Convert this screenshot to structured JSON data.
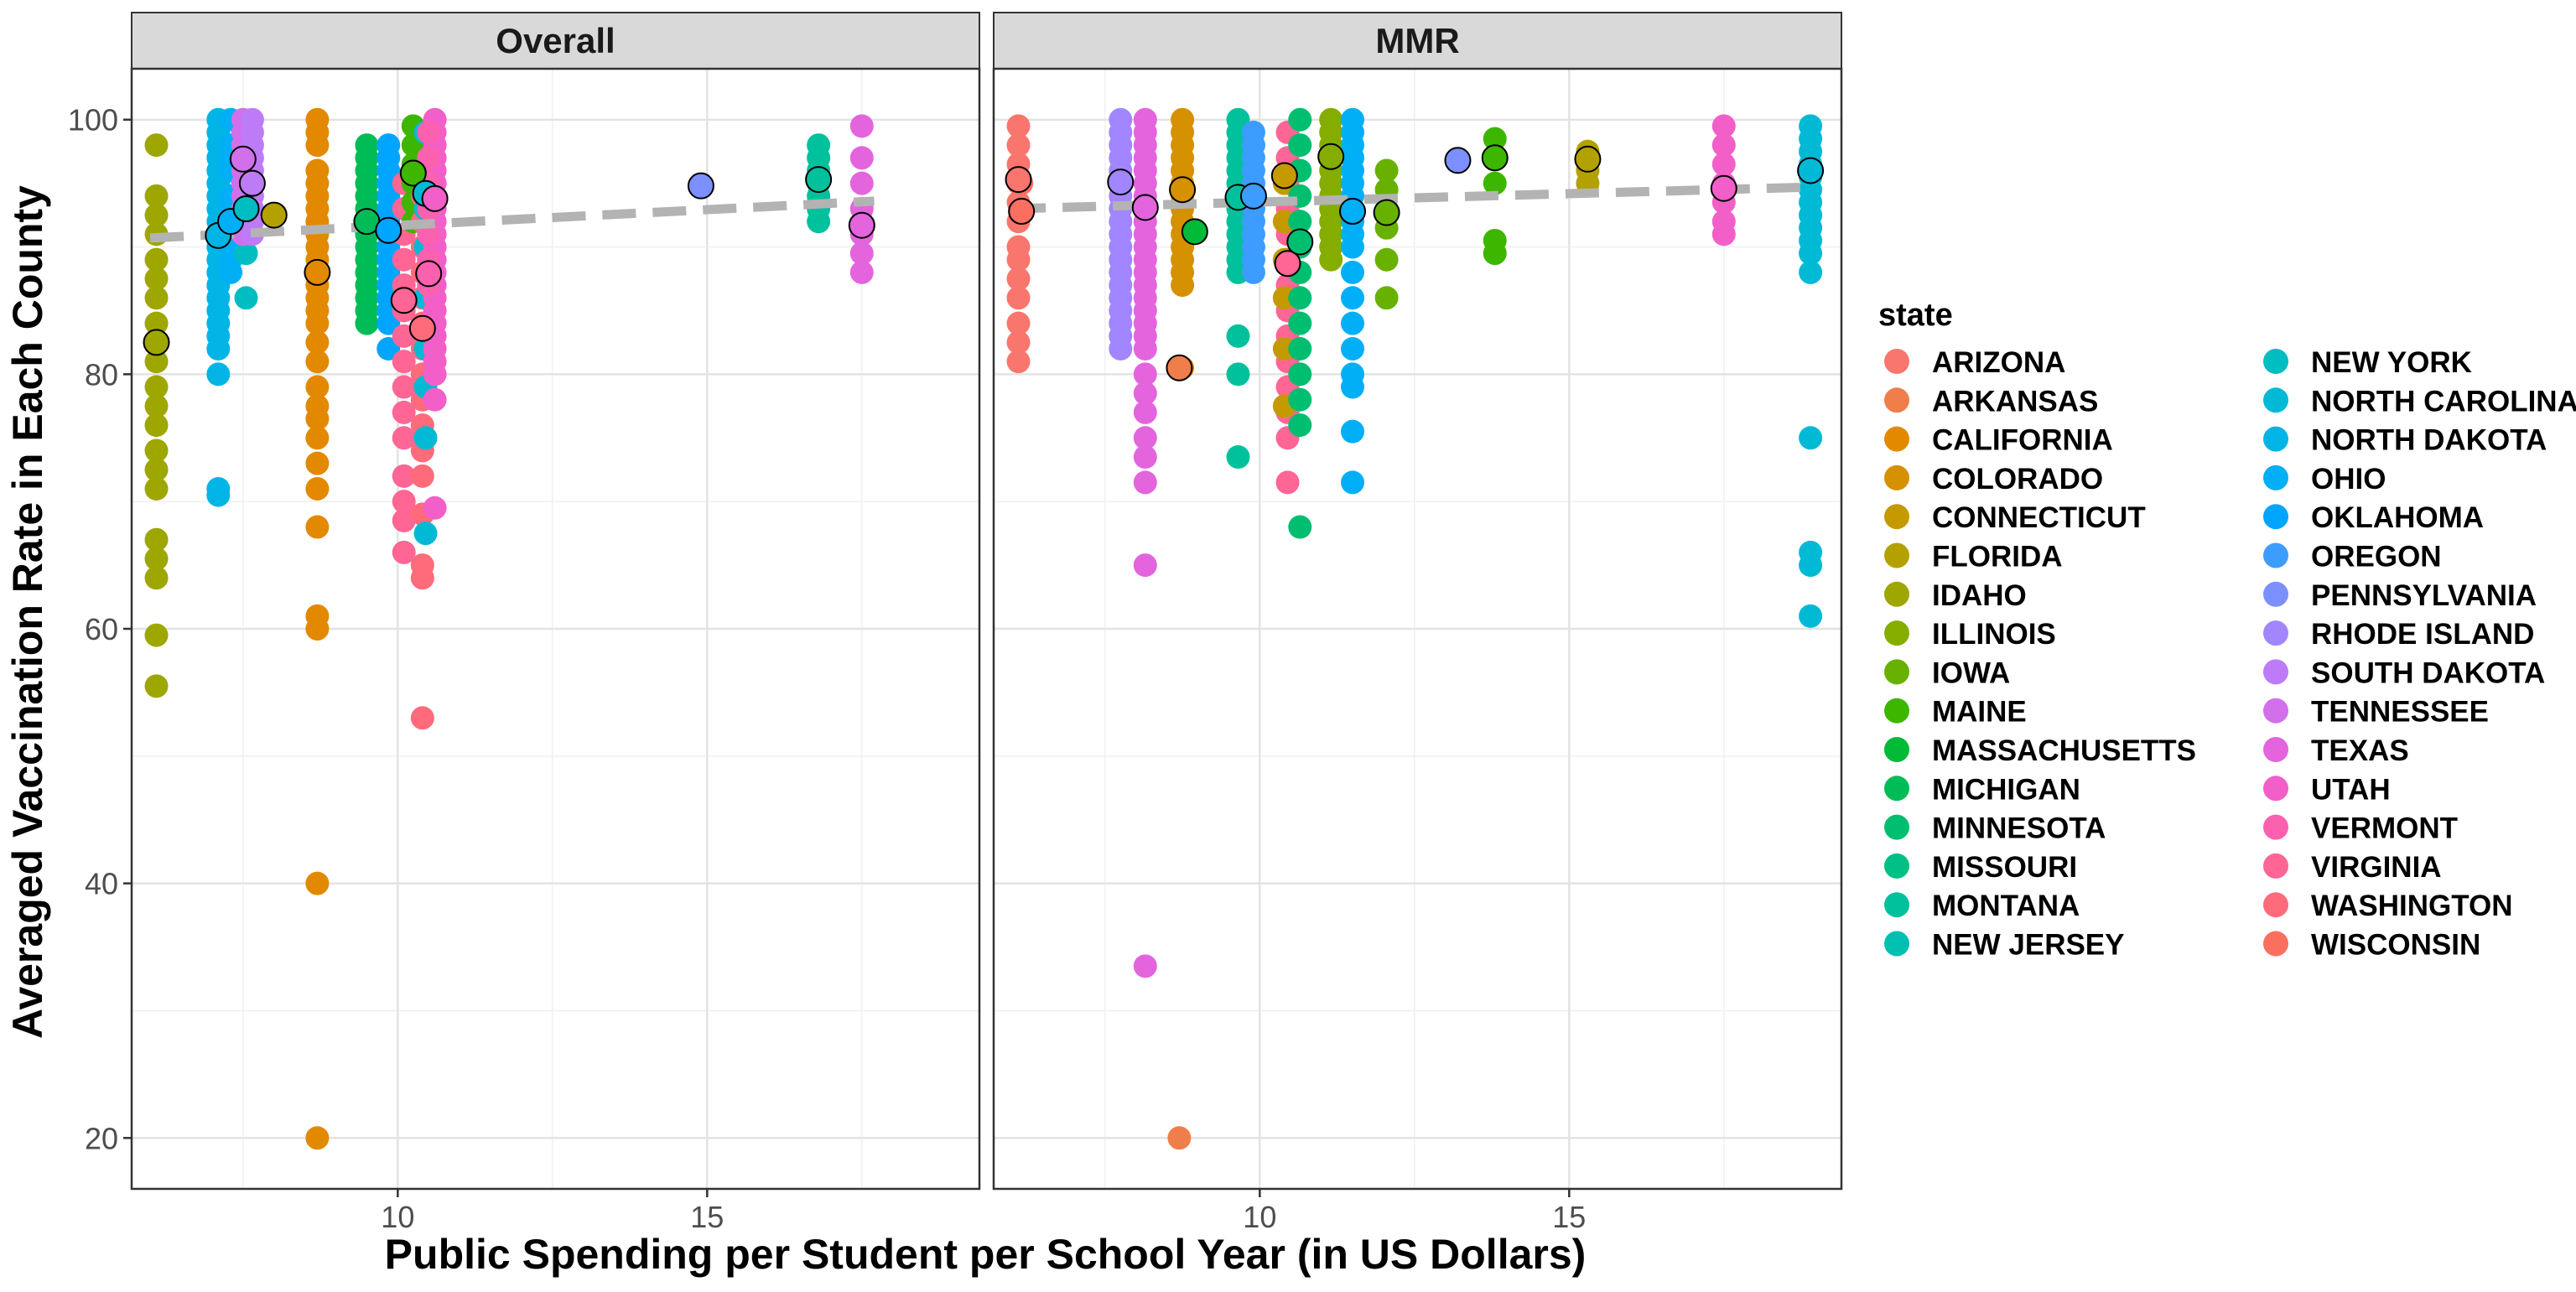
{
  "chart_data": {
    "type": "scatter",
    "xlabel": "Public Spending per Student per School Year (in US Dollars)",
    "ylabel": "Averaged Vaccination Rate in Each County",
    "xlim": [
      5.7,
      19.4
    ],
    "ylim": [
      16,
      104
    ],
    "x_ticks": [
      10,
      15
    ],
    "y_ticks": [
      20,
      40,
      60,
      80,
      100
    ],
    "grid": true,
    "legend_position": "right",
    "legend_title": "state",
    "trend_line": {
      "style": "dashed",
      "color": "#b3b3b3"
    },
    "states": [
      {
        "name": "ARIZONA",
        "color": "#F8766D"
      },
      {
        "name": "ARKANSAS",
        "color": "#F07E4A"
      },
      {
        "name": "CALIFORNIA",
        "color": "#E38900"
      },
      {
        "name": "COLORADO",
        "color": "#D59100"
      },
      {
        "name": "CONNECTICUT",
        "color": "#C49A00"
      },
      {
        "name": "FLORIDA",
        "color": "#B2A100"
      },
      {
        "name": "IDAHO",
        "color": "#9DA700"
      },
      {
        "name": "ILLINOIS",
        "color": "#85AD00"
      },
      {
        "name": "IOWA",
        "color": "#69B100"
      },
      {
        "name": "MAINE",
        "color": "#3DB600"
      },
      {
        "name": "MASSACHUSETTS",
        "color": "#00BA38"
      },
      {
        "name": "MICHIGAN",
        "color": "#00BC57"
      },
      {
        "name": "MINNESOTA",
        "color": "#00BE70"
      },
      {
        "name": "MISSOURI",
        "color": "#00C086"
      },
      {
        "name": "MONTANA",
        "color": "#00C19C"
      },
      {
        "name": "NEW JERSEY",
        "color": "#00BFB0"
      },
      {
        "name": "NEW YORK",
        "color": "#00BDC2"
      },
      {
        "name": "NORTH CAROLINA",
        "color": "#00BAD5"
      },
      {
        "name": "NORTH DAKOTA",
        "color": "#00B5E5"
      },
      {
        "name": "OHIO",
        "color": "#00AFF5"
      },
      {
        "name": "OKLAHOMA",
        "color": "#00A5FF"
      },
      {
        "name": "OREGON",
        "color": "#3D9CFF"
      },
      {
        "name": "PENNSYLVANIA",
        "color": "#7C8FFF"
      },
      {
        "name": "RHODE ISLAND",
        "color": "#A286FF"
      },
      {
        "name": "SOUTH DAKOTA",
        "color": "#BD7BF8"
      },
      {
        "name": "TENNESSEE",
        "color": "#D26FEB"
      },
      {
        "name": "TEXAS",
        "color": "#E464DE"
      },
      {
        "name": "UTAH",
        "color": "#F25FC8"
      },
      {
        "name": "VERMONT",
        "color": "#FB61AE"
      },
      {
        "name": "VIRGINIA",
        "color": "#FF6595"
      },
      {
        "name": "WASHINGTON",
        "color": "#FF6B7B"
      },
      {
        "name": "WISCONSIN",
        "color": "#FB6F60"
      }
    ],
    "panels": [
      {
        "title": "Overall",
        "trend": [
          [
            6.0,
            90.7
          ],
          [
            17.7,
            93.6
          ]
        ],
        "groups": [
          {
            "state": "IDAHO",
            "x": 6.1,
            "y": [
              98,
              94,
              92.5,
              91,
              89,
              87.5,
              86,
              84,
              82.5,
              81,
              79,
              77.5,
              76,
              74,
              72.5,
              71,
              67,
              65.5,
              64,
              59.5,
              55.5
            ],
            "mean": 82.5
          },
          {
            "state": "NORTH DAKOTA",
            "x": 7.1,
            "y": [
              100,
              99,
              98,
              97,
              96,
              95,
              94,
              93,
              92,
              91,
              90,
              89,
              88,
              87,
              86,
              85,
              84,
              83,
              82,
              80,
              71,
              70.5
            ],
            "mean": 90.9
          },
          {
            "state": "OHIO",
            "x": 7.3,
            "y": [
              100,
              98,
              97,
              96,
              94,
              93,
              92,
              91,
              90,
              89,
              88
            ],
            "mean": 92
          },
          {
            "state": "NEW YORK",
            "x": 7.55,
            "y": [
              99,
              97,
              95,
              93,
              91,
              89.5,
              86
            ],
            "mean": 93
          },
          {
            "state": "TENNESSEE",
            "x": 7.5,
            "y": [
              100,
              99,
              98,
              97,
              96,
              95,
              94,
              93,
              92,
              91
            ],
            "mean": 96.9
          },
          {
            "state": "SOUTH DAKOTA",
            "x": 7.65,
            "y": [
              100,
              99,
              98,
              97,
              96,
              95,
              94,
              93,
              92,
              91
            ],
            "mean": 95
          },
          {
            "state": "FLORIDA",
            "x": 8.0,
            "y": [
              92.5
            ],
            "mean": 92.5
          },
          {
            "state": "CALIFORNIA",
            "x": 8.7,
            "y": [
              100,
              99,
              98,
              96,
              95,
              94,
              93,
              92,
              91,
              90,
              89,
              88,
              87,
              86,
              85,
              84,
              82.5,
              81,
              79,
              77.5,
              76.5,
              75,
              73,
              71,
              68,
              61,
              60,
              40,
              20
            ],
            "mean": 88
          },
          {
            "state": "MICHIGAN",
            "x": 9.5,
            "y": [
              98,
              97,
              96,
              95,
              94,
              93,
              92,
              91,
              90,
              89,
              88,
              87,
              86,
              85,
              84
            ],
            "mean": 92
          },
          {
            "state": "OKLAHOMA",
            "x": 9.85,
            "y": [
              98,
              97,
              96,
              95,
              94,
              93,
              92,
              91,
              90,
              89,
              88,
              87,
              86,
              85,
              84,
              82
            ],
            "mean": 91.3
          },
          {
            "state": "VIRGINIA",
            "x": 10.1,
            "y": [
              95,
              93,
              91,
              89,
              87,
              85,
              83,
              81,
              79,
              77,
              75,
              72,
              70,
              68.5,
              66
            ],
            "mean": 85.8
          },
          {
            "state": "MAINE",
            "x": 10.25,
            "y": [
              99.5,
              98,
              96.5,
              95,
              93.5,
              92
            ],
            "mean": 95.8
          },
          {
            "state": "WASHINGTON",
            "x": 10.4,
            "y": [
              96,
              94,
              92,
              90,
              88,
              86,
              84,
              82,
              80,
              78,
              76,
              74,
              72,
              69,
              65,
              64,
              53
            ],
            "mean": 83.6
          },
          {
            "state": "NORTH CAROLINA",
            "x": 10.45,
            "y": [
              99,
              96,
              93,
              90,
              86,
              82,
              79,
              75,
              67.5
            ],
            "mean": 94.2
          },
          {
            "state": "UTAH",
            "x": 10.6,
            "y": [
              100,
              99,
              98,
              97,
              96,
              95,
              94,
              93,
              92,
              91,
              90,
              89,
              88,
              87,
              86,
              85,
              84,
              83,
              82,
              81,
              80,
              78,
              69.5
            ],
            "mean": 93.8
          },
          {
            "state": "VERMONT",
            "x": 10.5,
            "y": [
              99,
              97,
              95,
              93,
              91,
              89,
              87
            ],
            "mean": 87.9
          },
          {
            "state": "PENNSYLVANIA",
            "x": 14.9,
            "y": [
              94.8
            ],
            "mean": 94.8
          },
          {
            "state": "MONTANA",
            "x": 16.8,
            "y": [
              98,
              97,
              96,
              95,
              94,
              93,
              92
            ],
            "mean": 95.3
          },
          {
            "state": "TEXAS",
            "x": 17.5,
            "y": [
              99.5,
              97,
              95,
              93,
              91,
              89.5,
              88
            ],
            "mean": 91.7
          }
        ]
      },
      {
        "title": "MMR",
        "trend": [
          [
            6.0,
            93.0
          ],
          [
            18.9,
            94.7
          ]
        ],
        "groups": [
          {
            "state": "ARIZONA",
            "x": 6.1,
            "y": [
              99.5,
              98,
              96.5,
              95,
              93.5,
              92,
              90,
              89,
              87.5,
              86,
              84,
              82.5,
              81
            ],
            "mean": 95.3
          },
          {
            "state": "WISCONSIN",
            "x": 6.15,
            "y": [
              95,
              93
            ],
            "mean": 92.8
          },
          {
            "state": "RHODE ISLAND",
            "x": 7.75,
            "y": [
              100,
              99,
              98,
              97,
              96,
              95,
              94,
              93,
              92,
              91,
              90,
              89,
              88,
              87,
              86,
              85,
              84,
              83,
              82
            ],
            "mean": 95.1
          },
          {
            "state": "TEXAS",
            "x": 8.15,
            "y": [
              100,
              99,
              98,
              97,
              96,
              95,
              94,
              93,
              92,
              91,
              90,
              89,
              88,
              87,
              86,
              85,
              84,
              83,
              82,
              80,
              78.5,
              77,
              75,
              73.5,
              71.5,
              65,
              33.5
            ],
            "mean": 93.1
          },
          {
            "state": "COLORADO",
            "x": 8.75,
            "y": [
              100,
              99,
              98,
              97,
              96,
              95,
              94,
              93,
              92,
              91,
              90,
              89,
              88,
              87,
              80.5
            ],
            "mean": 94.5
          },
          {
            "state": "ARKANSAS",
            "x": 8.7,
            "y": [
              80.5,
              20
            ],
            "mean": 80.5
          },
          {
            "state": "MASSACHUSETTS",
            "x": 8.95,
            "y": [
              91.2
            ],
            "mean": 91.2
          },
          {
            "state": "MONTANA",
            "x": 9.65,
            "y": [
              100,
              99,
              98,
              97,
              96,
              95,
              94,
              93,
              92,
              91,
              90,
              89,
              88,
              83,
              80,
              73.5
            ],
            "mean": 93.9
          },
          {
            "state": "OREGON",
            "x": 9.9,
            "y": [
              99,
              98,
              97,
              96,
              95,
              94,
              93,
              92,
              91,
              90,
              89,
              88
            ],
            "mean": 94
          },
          {
            "state": "VIRGINIA",
            "x": 10.45,
            "y": [
              99,
              97,
              95,
              93,
              91,
              89,
              87,
              85,
              83,
              81,
              79,
              77,
              75,
              71.5
            ],
            "mean": 88.7
          },
          {
            "state": "CONNECTICUT",
            "x": 10.4,
            "y": [
              95,
              92,
              89,
              86,
              82,
              77.5
            ],
            "mean": 95.6
          },
          {
            "state": "MINNESOTA",
            "x": 10.65,
            "y": [
              100,
              98,
              96,
              94,
              92,
              90,
              88,
              86,
              84,
              82,
              80,
              78,
              76,
              68
            ],
            "mean": 90.4
          },
          {
            "state": "ILLINOIS",
            "x": 11.15,
            "y": [
              100,
              99,
              98,
              97,
              96,
              95,
              94,
              93,
              92,
              91,
              90,
              89
            ],
            "mean": 97.1
          },
          {
            "state": "OHIO",
            "x": 11.5,
            "y": [
              100,
              99,
              98,
              97,
              96,
              95,
              94,
              93,
              92,
              91,
              90,
              88,
              86,
              84,
              82,
              80,
              79,
              75.5,
              71.5
            ],
            "mean": 92.8
          },
          {
            "state": "IOWA",
            "x": 12.05,
            "y": [
              96,
              94.5,
              93,
              91.5,
              89,
              86
            ],
            "mean": 92.7
          },
          {
            "state": "PENNSYLVANIA",
            "x": 13.2,
            "y": [
              96.8
            ],
            "mean": 96.8
          },
          {
            "state": "MAINE",
            "x": 13.8,
            "y": [
              98.5,
              97,
              95,
              90.5,
              89.5
            ],
            "mean": 97
          },
          {
            "state": "FLORIDA",
            "x": 15.3,
            "y": [
              97.5,
              96,
              95
            ],
            "mean": 96.9
          },
          {
            "state": "UTAH",
            "x": 17.5,
            "y": [
              99.5,
              98,
              96.5,
              95,
              93.5,
              92,
              91
            ],
            "mean": 94.6
          },
          {
            "state": "NORTH CAROLINA",
            "x": 18.9,
            "y": [
              99.5,
              98.5,
              97.5,
              96.5,
              95.5,
              94.5,
              93.5,
              92.5,
              91.5,
              90.5,
              89.5,
              88,
              75,
              66,
              65,
              61
            ],
            "mean": 96
          }
        ]
      }
    ]
  }
}
